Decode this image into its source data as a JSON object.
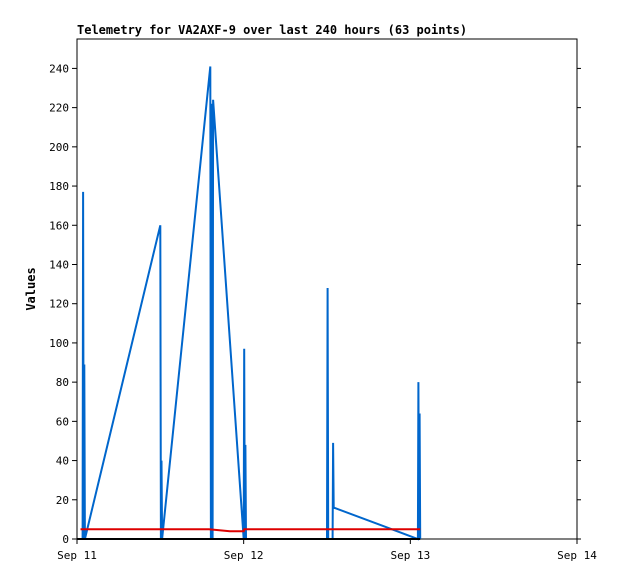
{
  "chart_data": {
    "type": "line",
    "title": "Telemetry for VA2AXF-9 over last 240 hours (63 points)",
    "xlabel": "",
    "ylabel": "Values",
    "x_ticks": [
      "Sep 11",
      "Sep 12",
      "Sep 13",
      "Sep 14"
    ],
    "x_range": [
      "Sep 11",
      "Sep 14"
    ],
    "ylim": [
      0,
      255
    ],
    "y_ticks": [
      0,
      20,
      40,
      60,
      80,
      100,
      120,
      140,
      160,
      180,
      200,
      220,
      240
    ],
    "grid": false,
    "legend": "none",
    "series": [
      {
        "color": "#0066cc",
        "points": [
          {
            "x": "Sep 11 00:48",
            "y": 0
          },
          {
            "x": "Sep 11 00:53",
            "y": 177
          },
          {
            "x": "Sep 11 00:58",
            "y": 0
          },
          {
            "x": "Sep 11 01:03",
            "y": 89
          },
          {
            "x": "Sep 11 01:08",
            "y": 0
          },
          {
            "x": "Sep 11 12:00",
            "y": 160
          },
          {
            "x": "Sep 11 12:05",
            "y": 0
          },
          {
            "x": "Sep 11 12:10",
            "y": 40
          },
          {
            "x": "Sep 11 12:15",
            "y": 0
          },
          {
            "x": "Sep 11 19:12",
            "y": 241
          },
          {
            "x": "Sep 11 19:17",
            "y": 0
          },
          {
            "x": "Sep 11 19:22",
            "y": 222
          },
          {
            "x": "Sep 11 19:32",
            "y": 0
          },
          {
            "x": "Sep 11 19:36",
            "y": 224
          },
          {
            "x": "Sep 12 00:00",
            "y": 0
          },
          {
            "x": "Sep 12 00:05",
            "y": 97
          },
          {
            "x": "Sep 12 00:10",
            "y": 0
          },
          {
            "x": "Sep 12 00:15",
            "y": 48
          },
          {
            "x": "Sep 12 00:20",
            "y": 0
          },
          {
            "x": "Sep 12 12:00",
            "y": 0
          },
          {
            "x": "Sep 12 12:05",
            "y": 128
          },
          {
            "x": "Sep 12 12:10",
            "y": 0
          },
          {
            "x": "Sep 12 12:48",
            "y": 0
          },
          {
            "x": "Sep 12 12:53",
            "y": 49
          },
          {
            "x": "Sep 12 12:58",
            "y": 16
          },
          {
            "x": "Sep 13 01:05",
            "y": 0
          },
          {
            "x": "Sep 13 01:10",
            "y": 80
          },
          {
            "x": "Sep 13 01:15",
            "y": 0
          },
          {
            "x": "Sep 13 01:20",
            "y": 64
          },
          {
            "x": "Sep 13 01:25",
            "y": 0
          }
        ]
      },
      {
        "color": "#dd0000",
        "points": [
          {
            "x": "Sep 11 00:30",
            "y": 5
          },
          {
            "x": "Sep 11 19:00",
            "y": 5
          },
          {
            "x": "Sep 11 22:00",
            "y": 4
          },
          {
            "x": "Sep 12 00:00",
            "y": 4
          },
          {
            "x": "Sep 12 00:05",
            "y": 5
          },
          {
            "x": "Sep 13 01:25",
            "y": 5
          }
        ]
      },
      {
        "color": "#000000",
        "points": [
          {
            "x": "Sep 11 00:00",
            "y": 0
          },
          {
            "x": "Sep 13 01:25",
            "y": 0
          }
        ]
      }
    ]
  }
}
